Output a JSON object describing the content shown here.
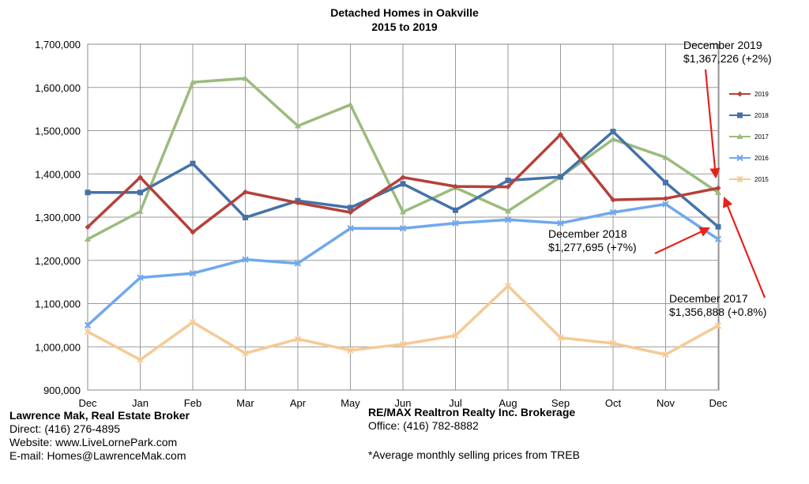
{
  "chart_data": {
    "type": "line",
    "title": "Detached Homes in Oakville",
    "subtitle": "2015 to 2019",
    "categories": [
      "Dec",
      "Jan",
      "Feb",
      "Mar",
      "Apr",
      "May",
      "Jun",
      "Jul",
      "Aug",
      "Sep",
      "Oct",
      "Nov",
      "Dec"
    ],
    "ylim": [
      900000,
      1700000
    ],
    "yticks": [
      "900,000",
      "1,000,000",
      "1,100,000",
      "1,200,000",
      "1,300,000",
      "1,400,000",
      "1,500,000",
      "1,600,000",
      "1,700,000"
    ],
    "grid": true,
    "legend_position": "right",
    "series": [
      {
        "name": "2019",
        "color": "#b5403a",
        "marker": "diamond",
        "values": [
          1277000,
          1392000,
          1265000,
          1358000,
          1333000,
          1311000,
          1392000,
          1371000,
          1370000,
          1491000,
          1340000,
          1343000,
          1367226
        ]
      },
      {
        "name": "2018",
        "color": "#4472a8",
        "marker": "square",
        "values": [
          1357000,
          1357000,
          1424000,
          1299000,
          1338000,
          1322000,
          1377000,
          1316000,
          1385000,
          1393000,
          1498000,
          1380000,
          1277695
        ]
      },
      {
        "name": "2017",
        "color": "#9bbb7e",
        "marker": "triangle",
        "values": [
          1249000,
          1313000,
          1612000,
          1621000,
          1511000,
          1560000,
          1312000,
          1368000,
          1314000,
          1393000,
          1480000,
          1438000,
          1356888
        ]
      },
      {
        "name": "2016",
        "color": "#6fa8ef",
        "marker": "x",
        "values": [
          1050000,
          1160000,
          1170000,
          1202000,
          1193000,
          1274000,
          1274000,
          1286000,
          1294000,
          1286000,
          1311000,
          1330000,
          1249000
        ]
      },
      {
        "name": "2015",
        "color": "#f6c994",
        "marker": "star",
        "values": [
          1035000,
          970000,
          1057000,
          985000,
          1018000,
          992000,
          1006000,
          1026000,
          1141000,
          1021000,
          1008000,
          982000,
          1049000
        ]
      }
    ],
    "annotations": [
      {
        "id": "dec2019",
        "line1": "December 2019",
        "line2": "$1,367,226 (+2%)"
      },
      {
        "id": "dec2018",
        "line1": "December 2018",
        "line2": "$1,277,695 (+7%)"
      },
      {
        "id": "dec2017",
        "line1": "December 2017",
        "line2": "$1,356,888 (+0.8%)"
      }
    ],
    "arrow_color": "#e8211a"
  },
  "footer": {
    "agent_name": "Lawrence Mak, Real Estate Broker",
    "direct": "Direct:  (416) 276-4895",
    "website": "Website:  www.LiveLornePark.com",
    "email": "E-mail:  Homes@LawrenceMak.com",
    "brokerage": "RE/MAX Realtron Realty Inc. Brokerage",
    "office": "Office: (416) 782-8882",
    "note": "*Average monthly selling prices from TREB"
  }
}
